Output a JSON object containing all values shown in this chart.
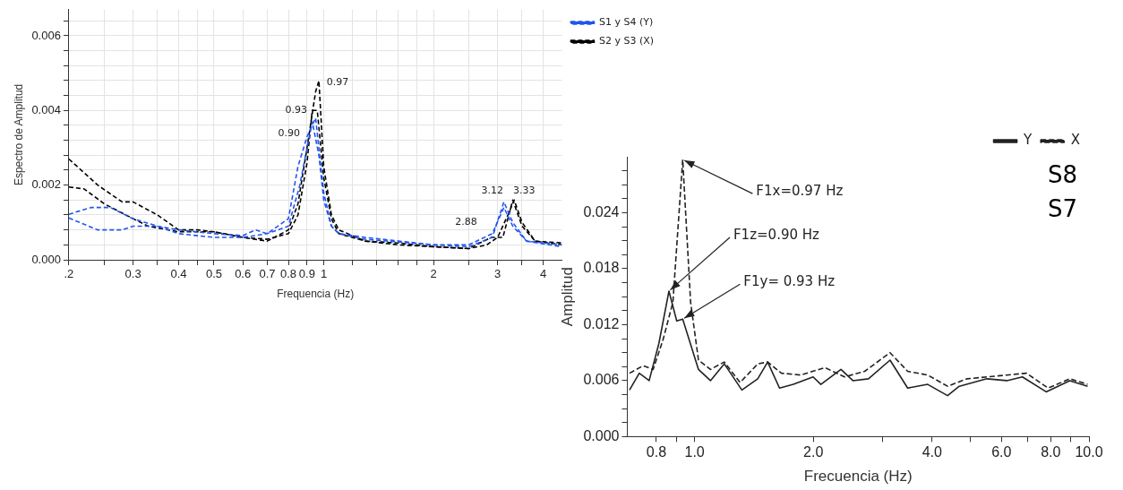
{
  "chart_data": [
    {
      "type": "line",
      "xlabel": "Frequencia (Hz)",
      "ylabel": "Espectro de Amplitud",
      "log": "x",
      "grid": true,
      "legend": "right",
      "line_style": "dashed",
      "xlim": [
        0.2,
        4.5
      ],
      "ylim": [
        0,
        0.0067
      ],
      "xticks": [
        {
          "value": 0.2,
          "label": ".2"
        },
        {
          "value": 0.25,
          "label": null
        },
        0.3,
        {
          "value": 0.35,
          "label": null
        },
        0.4,
        {
          "value": 0.45,
          "label": null
        },
        0.5,
        0.6,
        0.7,
        0.8,
        0.9,
        1,
        {
          "value": 1.2,
          "label": null
        },
        {
          "value": 1.4,
          "label": null
        },
        {
          "value": 1.6,
          "label": null
        },
        {
          "value": 1.8,
          "label": null
        },
        2,
        {
          "value": 2.5,
          "label": null
        },
        3,
        {
          "value": 3.5,
          "label": null
        },
        4
      ],
      "yticks": [
        {
          "value": 0,
          "label": "0.000"
        },
        {
          "value": 0.0004,
          "label": null
        },
        {
          "value": 0.0008,
          "label": null
        },
        {
          "value": 0.0012,
          "label": null
        },
        {
          "value": 0.0016,
          "label": null
        },
        {
          "value": 0.002,
          "label": "0.002"
        },
        {
          "value": 0.0024,
          "label": null
        },
        {
          "value": 0.0028,
          "label": null
        },
        {
          "value": 0.0032,
          "label": null
        },
        {
          "value": 0.0036,
          "label": null
        },
        {
          "value": 0.004,
          "label": "0.004"
        },
        {
          "value": 0.0044,
          "label": null
        },
        {
          "value": 0.0048,
          "label": null
        },
        {
          "value": 0.0052,
          "label": null
        },
        {
          "value": 0.0056,
          "label": null
        },
        {
          "value": 0.006,
          "label": "0.006"
        },
        {
          "value": 0.0064,
          "label": null
        }
      ],
      "series": [
        {
          "name": "S1 y S4 (Y)",
          "color": "#2255ee",
          "x": [
            0.2,
            0.23,
            0.26,
            0.3,
            0.35,
            0.4,
            0.5,
            0.6,
            0.65,
            0.7,
            0.8,
            0.85,
            0.9,
            0.95,
            1.0,
            1.05,
            1.1,
            1.3,
            2,
            2.5,
            2.9,
            3.12,
            3.3,
            3.6,
            4.5
          ],
          "values": [
            0.00122,
            0.0014,
            0.0014,
            0.0011,
            0.0009,
            0.0008,
            0.0007,
            0.00065,
            0.0008,
            0.0007,
            0.0011,
            0.0025,
            0.0033,
            0.0038,
            0.0018,
            0.0009,
            0.0007,
            0.00055,
            0.0004,
            0.00035,
            0.0006,
            0.00155,
            0.001,
            0.0005,
            0.00035
          ]
        },
        {
          "color": "#2255ee",
          "x": [
            0.2,
            0.24,
            0.28,
            0.3,
            0.35,
            0.4,
            0.5,
            0.6,
            0.7,
            0.8,
            0.86,
            0.9,
            0.93,
            0.97,
            1.0,
            1.05,
            1.1,
            1.3,
            2,
            2.5,
            2.9,
            3.12,
            3.3,
            3.6,
            4.5
          ],
          "values": [
            0.00112,
            0.0008,
            0.0008,
            0.0009,
            0.0009,
            0.0007,
            0.0006,
            0.0006,
            0.0007,
            0.0009,
            0.002,
            0.003,
            0.0037,
            0.0028,
            0.0016,
            0.0009,
            0.0007,
            0.0006,
            0.0004,
            0.0004,
            0.0007,
            0.0014,
            0.0009,
            0.0005,
            0.0004
          ]
        },
        {
          "name": "S2 y S3 (X)",
          "color": "#000000",
          "x": [
            0.2,
            0.24,
            0.28,
            0.3,
            0.35,
            0.4,
            0.45,
            0.5,
            0.6,
            0.7,
            0.8,
            0.85,
            0.9,
            0.95,
            0.97,
            1.0,
            1.05,
            1.1,
            1.3,
            1.6,
            2,
            2.5,
            2.8,
            3.0,
            3.2,
            3.33,
            3.5,
            3.8,
            4.5
          ],
          "values": [
            0.0027,
            0.002,
            0.00155,
            0.00155,
            0.0012,
            0.0008,
            0.0008,
            0.00075,
            0.0006,
            0.0005,
            0.0008,
            0.0015,
            0.003,
            0.0045,
            0.0048,
            0.0025,
            0.0012,
            0.0008,
            0.0005,
            0.00045,
            0.00035,
            0.0003,
            0.0004,
            0.0006,
            0.0012,
            0.0016,
            0.001,
            0.0005,
            0.00045
          ]
        },
        {
          "color": "#000000",
          "x": [
            0.2,
            0.22,
            0.25,
            0.3,
            0.33,
            0.4,
            0.5,
            0.6,
            0.7,
            0.8,
            0.85,
            0.9,
            0.93,
            0.96,
            1.0,
            1.05,
            1.1,
            1.3,
            1.6,
            2,
            2.5,
            2.88,
            3.1,
            3.3,
            3.5,
            3.8,
            4.5
          ],
          "values": [
            0.00195,
            0.0019,
            0.0015,
            0.0011,
            0.0009,
            0.00075,
            0.00075,
            0.0006,
            0.00055,
            0.0007,
            0.0012,
            0.0026,
            0.004,
            0.004,
            0.0022,
            0.0011,
            0.0007,
            0.0005,
            0.0004,
            0.00035,
            0.0003,
            0.0006,
            0.0006,
            0.0016,
            0.0009,
            0.0005,
            0.0004
          ]
        }
      ],
      "annotations": [
        {
          "text": "0.97",
          "x": 0.97,
          "y": 0.0048
        },
        {
          "text": "0.93",
          "x": 0.93,
          "y": 0.004
        },
        {
          "text": "0.90",
          "x": 0.9,
          "y": 0.003
        },
        {
          "text": "3.12",
          "x": 3.12,
          "y": 0.00155
        },
        {
          "text": "3.33",
          "x": 3.33,
          "y": 0.0016
        },
        {
          "text": "2.88",
          "x": 2.88,
          "y": 0.0006
        }
      ]
    },
    {
      "type": "line",
      "xlabel": "Frecuencia (Hz)",
      "ylabel": "Amplitud",
      "log": "x",
      "legend": "top right",
      "xlim": [
        0.675,
        10
      ],
      "ylim": [
        0,
        0.03
      ],
      "xticks": [
        {
          "value": 0.8,
          "label": "0.8"
        },
        {
          "value": 0.9,
          "label": null
        },
        {
          "value": 1,
          "label": "1.0"
        },
        {
          "value": 2,
          "label": "2.0"
        },
        {
          "value": 3,
          "label": null
        },
        {
          "value": 4,
          "label": "4.0"
        },
        {
          "value": 5,
          "label": null
        },
        {
          "value": 6,
          "label": "6.0"
        },
        {
          "value": 7,
          "label": null
        },
        {
          "value": 8,
          "label": "8.0"
        },
        {
          "value": 9,
          "label": null
        },
        {
          "value": 10,
          "label": "10.0"
        }
      ],
      "yticks": [
        {
          "value": 0,
          "label": "0.000"
        },
        {
          "value": 0.0015,
          "label": null
        },
        {
          "value": 0.003,
          "label": null
        },
        {
          "value": 0.0045,
          "label": null
        },
        {
          "value": 0.006,
          "label": "0.006"
        },
        {
          "value": 0.0075,
          "label": null
        },
        {
          "value": 0.009,
          "label": null
        },
        {
          "value": 0.0105,
          "label": null
        },
        {
          "value": 0.012,
          "label": "0.012"
        },
        {
          "value": 0.0135,
          "label": null
        },
        {
          "value": 0.015,
          "label": null
        },
        {
          "value": 0.0165,
          "label": null
        },
        {
          "value": 0.018,
          "label": "0.018"
        },
        {
          "value": 0.0195,
          "label": null
        },
        {
          "value": 0.021,
          "label": null
        },
        {
          "value": 0.0225,
          "label": null
        },
        {
          "value": 0.024,
          "label": "0.024"
        },
        {
          "value": 0.0255,
          "label": null
        },
        {
          "value": 0.027,
          "label": null
        },
        {
          "value": 0.0285,
          "label": null
        }
      ],
      "series": [
        {
          "name": "Y",
          "color": "#222222",
          "line_style": "solid",
          "x": [
            0.684,
            0.724,
            0.767,
            0.812,
            0.861,
            0.901,
            0.933,
            1.023,
            1.097,
            1.189,
            1.318,
            1.446,
            1.532,
            1.642,
            1.78,
            1.998,
            2.09,
            2.35,
            2.52,
            2.76,
            3.13,
            3.47,
            3.9,
            4.38,
            4.69,
            5.51,
            6.19,
            6.78,
            7.79,
            8.94,
            9.92
          ],
          "values": [
            0.005,
            0.0068,
            0.006,
            0.01,
            0.0156,
            0.0124,
            0.0126,
            0.0072,
            0.006,
            0.0078,
            0.005,
            0.0062,
            0.008,
            0.0052,
            0.0056,
            0.0064,
            0.0056,
            0.0072,
            0.006,
            0.0062,
            0.0082,
            0.0052,
            0.0056,
            0.0044,
            0.0054,
            0.0062,
            0.006,
            0.0064,
            0.0048,
            0.006,
            0.0054
          ]
        },
        {
          "name": "X",
          "color": "#222222",
          "line_style": "dashed",
          "x": [
            0.684,
            0.741,
            0.785,
            0.832,
            0.881,
            0.933,
            0.977,
            1.023,
            1.097,
            1.189,
            1.304,
            1.446,
            1.532,
            1.66,
            1.86,
            2.14,
            2.4,
            2.7,
            3.13,
            3.47,
            3.9,
            4.38,
            4.91,
            6.19,
            6.94,
            7.88,
            8.94,
            9.92
          ],
          "values": [
            0.0068,
            0.0076,
            0.0072,
            0.0104,
            0.0144,
            0.0297,
            0.0144,
            0.0082,
            0.0072,
            0.008,
            0.0058,
            0.0078,
            0.008,
            0.0068,
            0.0066,
            0.0074,
            0.0064,
            0.007,
            0.009,
            0.007,
            0.0066,
            0.0054,
            0.0062,
            0.0066,
            0.0068,
            0.0052,
            0.0062,
            0.0056
          ]
        }
      ],
      "annotations": [
        {
          "text": "F1x=0.97 Hz",
          "x": 0.933,
          "y": 0.0297
        },
        {
          "text": "F1z=0.90 Hz",
          "x": 0.861,
          "y": 0.0156
        },
        {
          "text": "F1y= 0.93 Hz",
          "x": 0.933,
          "y": 0.0126
        },
        "S8",
        "S7"
      ]
    }
  ]
}
